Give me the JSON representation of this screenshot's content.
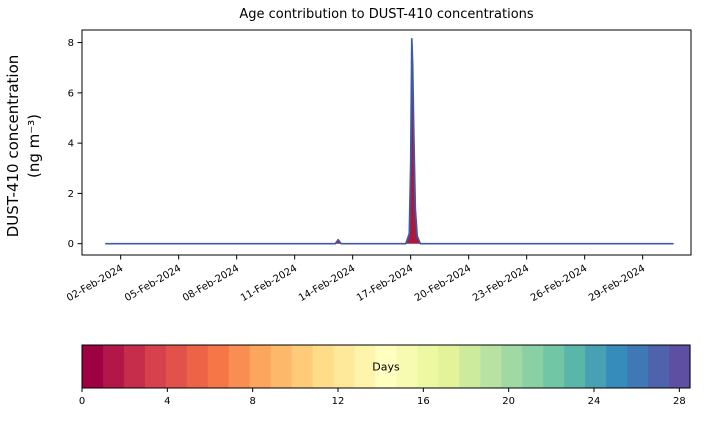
{
  "figure": {
    "background": "#ffffff"
  },
  "chart_data": {
    "type": "area",
    "title": "Age contribution to DUST-410 concentrations",
    "ylabel": "DUST-410 concentration",
    "ylabel_units": "(ng m⁻³)",
    "xlabel": "",
    "grid": false,
    "xlim": [
      0,
      31.5
    ],
    "ylim": [
      -0.45,
      8.5
    ],
    "y_ticks": [
      0,
      2,
      4,
      6,
      8
    ],
    "x_ticks": [
      {
        "day": 2,
        "label": "02-Feb-2024"
      },
      {
        "day": 5,
        "label": "05-Feb-2024"
      },
      {
        "day": 8,
        "label": "08-Feb-2024"
      },
      {
        "day": 11,
        "label": "11-Feb-2024"
      },
      {
        "day": 14,
        "label": "14-Feb-2024"
      },
      {
        "day": 17,
        "label": "17-Feb-2024"
      },
      {
        "day": 20,
        "label": "20-Feb-2024"
      },
      {
        "day": 23,
        "label": "23-Feb-2024"
      },
      {
        "day": 26,
        "label": "26-Feb-2024"
      },
      {
        "day": 29,
        "label": "29-Feb-2024"
      }
    ],
    "series": [
      {
        "name": "DUST-410 concentration",
        "line_color": "#3b5ba9",
        "fill_color": "#a81a3f",
        "x": [
          1.2,
          13.1,
          13.25,
          13.4,
          16.75,
          16.93,
          17.0,
          17.06,
          17.1,
          17.16,
          17.24,
          17.34,
          17.5,
          30.6
        ],
        "y": [
          0,
          0,
          0.16,
          0,
          0,
          0.4,
          3.2,
          8.15,
          7.2,
          4.4,
          1.4,
          0.3,
          0,
          0
        ]
      }
    ],
    "peak": {
      "date": "17-Feb-2024",
      "value": 8.15
    },
    "colorbar": {
      "label": "Days",
      "ticks": [
        0,
        4,
        8,
        12,
        16,
        20,
        24,
        28
      ],
      "vmin": 0,
      "vmax": 28.5,
      "n_segments": 29,
      "colormap": "Spectral",
      "stops": [
        "#9e0142",
        "#d53e4f",
        "#f46d43",
        "#fdae61",
        "#fee08b",
        "#ffffbf",
        "#e6f598",
        "#abdda4",
        "#66c2a5",
        "#3288bd",
        "#5e4fa2"
      ]
    }
  }
}
